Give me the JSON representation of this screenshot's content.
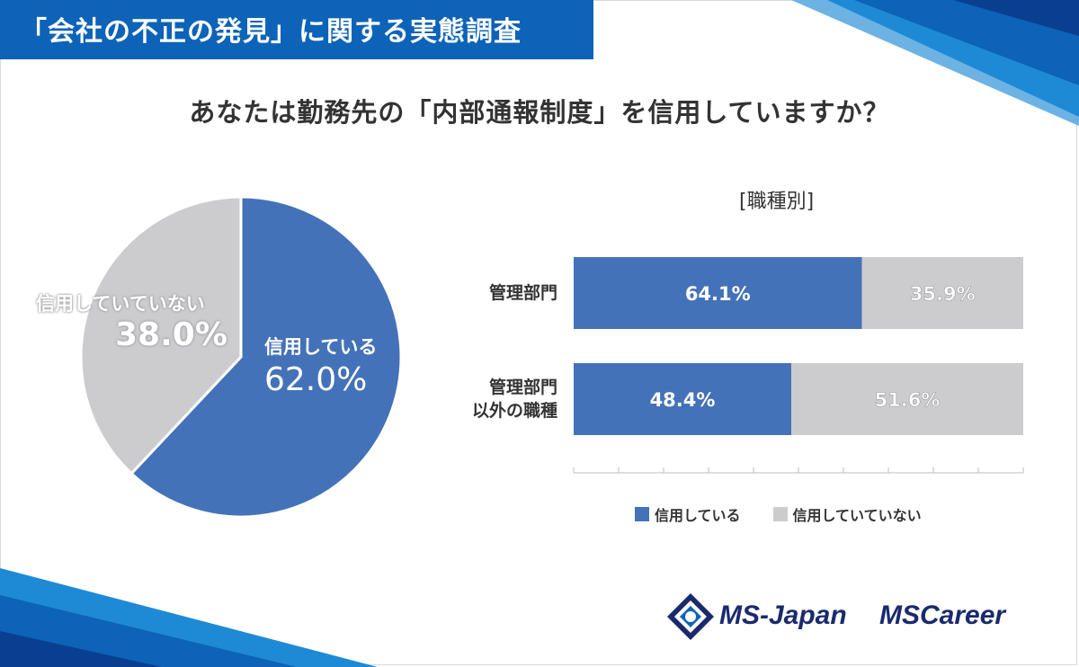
{
  "header": {
    "title": "「会社の不正の発見」に関する実態調査"
  },
  "question": "あなたは勤務先の「内部通報制度」を信用していますか？",
  "colors": {
    "trust": "#4472b8",
    "not_trust": "#cccccf",
    "brand_blue": "#0d63b7"
  },
  "pie": {
    "trust_label": "信用している",
    "trust_value": "62.0%",
    "not_label": "信用していていない",
    "not_value": "38.0%"
  },
  "bars": {
    "title": "[職種別]",
    "legend": {
      "trust": "信用している",
      "not_trust": "信用していていない"
    },
    "rows": [
      {
        "label_line1": "管理部門",
        "label_line2": "",
        "trust_text": "64.1%",
        "not_text": "35.9%"
      },
      {
        "label_line1": "管理部門",
        "label_line2": "以外の職種",
        "trust_text": "48.4%",
        "not_text": "51.6%"
      }
    ]
  },
  "logos": {
    "ms_japan": "MS-Japan",
    "ms_career": "MSCareer"
  },
  "chart_data": [
    {
      "type": "pie",
      "categories": [
        "信用している",
        "信用していていない"
      ],
      "values": [
        62.0,
        38.0
      ],
      "title": "あなたは勤務先の「内部通報制度」を信用していますか？"
    },
    {
      "type": "bar",
      "orientation": "horizontal",
      "stacked": true,
      "title": "[職種別]",
      "categories": [
        "管理部門",
        "管理部門 以外の職種"
      ],
      "series": [
        {
          "name": "信用している",
          "values": [
            64.1,
            48.4
          ]
        },
        {
          "name": "信用していていない",
          "values": [
            35.9,
            51.6
          ]
        }
      ],
      "xlim": [
        0,
        100
      ],
      "legend": "bottom"
    }
  ]
}
